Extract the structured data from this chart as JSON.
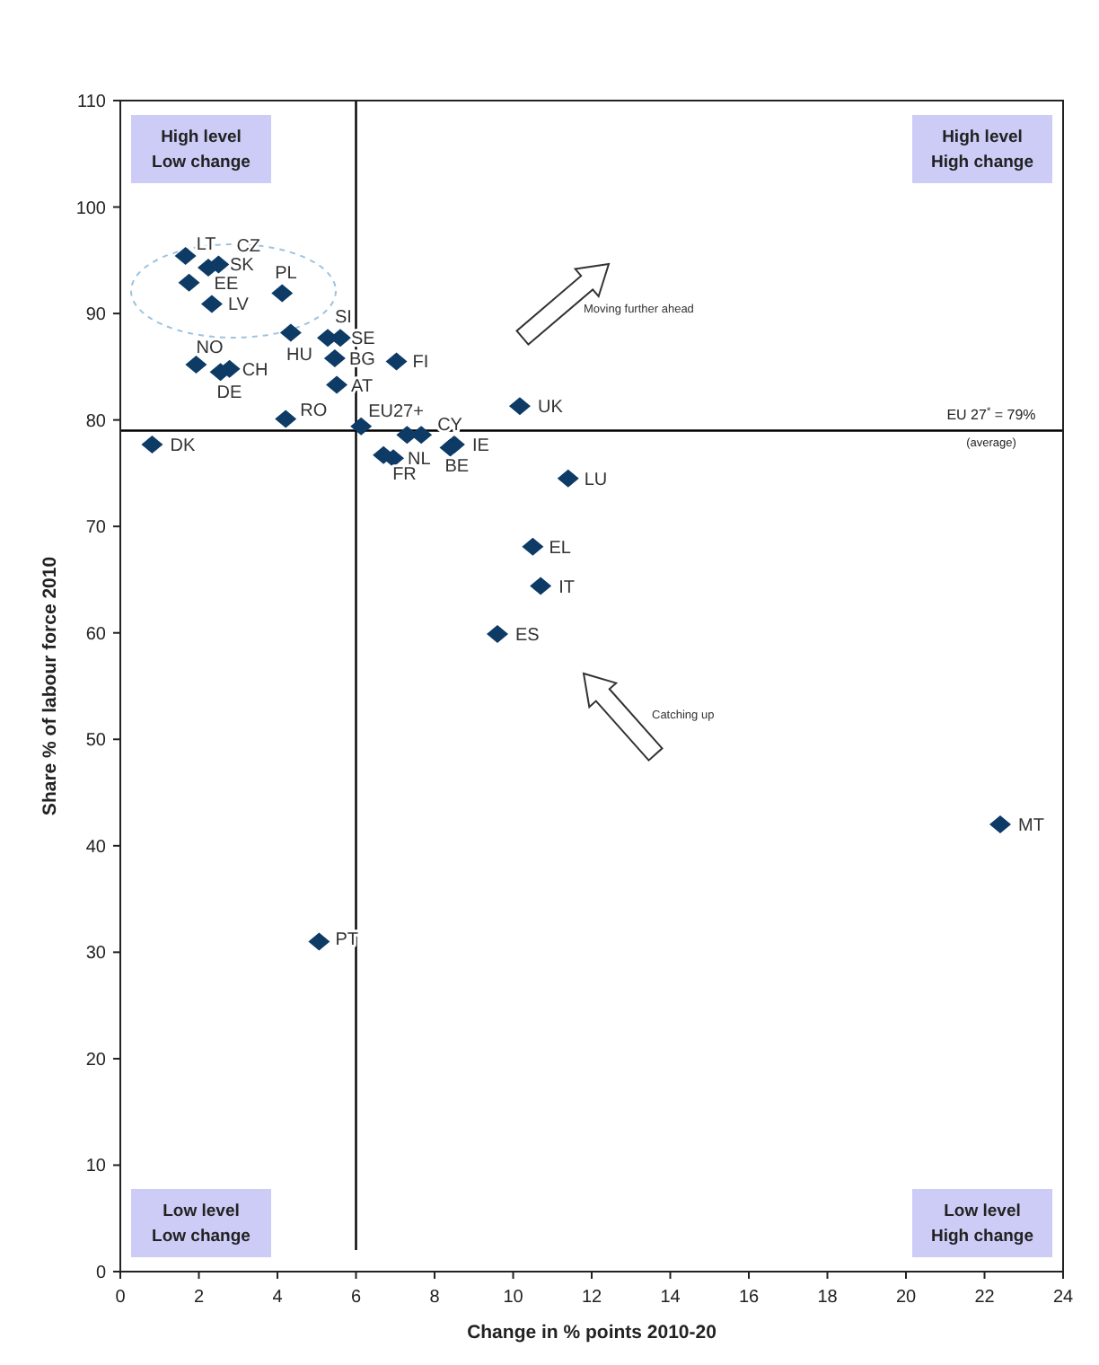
{
  "chart_data": {
    "type": "scatter",
    "xlabel": "Change in % points 2010-20",
    "ylabel": "Share % of labour force 2010",
    "xlim": [
      0,
      24
    ],
    "xticks": [
      0,
      2,
      4,
      6,
      8,
      10,
      12,
      14,
      16,
      18,
      20,
      22,
      24
    ],
    "ylim": [
      0,
      110
    ],
    "yticks": [
      0,
      10,
      20,
      30,
      40,
      50,
      60,
      70,
      80,
      90,
      100,
      110
    ],
    "grid": false,
    "marker": "diamond",
    "series": [
      {
        "color": "#0d3b66",
        "x": [
          1.66,
          2.5,
          2.24,
          1.75,
          2.33,
          4.12,
          4.34,
          5.28,
          5.6,
          5.46,
          7.03,
          1.93,
          2.78,
          2.55,
          5.51,
          4.21,
          6.13,
          10.17,
          0.81,
          7.66,
          7.3,
          8.5,
          8.4,
          6.95,
          6.7,
          11.4,
          10.5,
          10.7,
          9.6,
          22.4,
          5.06
        ],
        "values": [
          95.4,
          94.6,
          94.3,
          92.9,
          90.9,
          91.9,
          88.2,
          87.7,
          87.7,
          85.8,
          85.5,
          85.2,
          84.8,
          84.5,
          83.3,
          80.1,
          79.4,
          81.3,
          77.7,
          78.6,
          78.6,
          77.7,
          77.4,
          76.4,
          76.7,
          74.5,
          68.1,
          64.4,
          59.9,
          42,
          31
        ]
      }
    ],
    "ref_lines": [
      {
        "axis": "y",
        "value": 79,
        "label": "EU 27$^{*}$ = 79%\n(average)",
        "color": "#000000"
      },
      {
        "axis": "x",
        "value": 6,
        "color": "#000000"
      }
    ],
    "annotations": [
      "High level\nLow change",
      "High level\nHigh change",
      "Low level\nLow change",
      "Low level\nHigh change",
      "Moving further ahead",
      "Catching up",
      {
        "text": "LT",
        "x": 1.66,
        "y": 95.4
      },
      {
        "text": "CZ",
        "x": 2.5,
        "y": 94.6
      },
      {
        "text": "SK",
        "x": 2.24,
        "y": 94.3
      },
      {
        "text": "EE",
        "x": 1.75,
        "y": 92.9
      },
      {
        "text": "LV",
        "x": 2.33,
        "y": 90.9
      },
      {
        "text": "PL",
        "x": 4.12,
        "y": 91.9
      },
      {
        "text": "HU",
        "x": 4.34,
        "y": 88.2
      },
      {
        "text": "SI",
        "x": 5.28,
        "y": 87.7
      },
      {
        "text": "SE",
        "x": 5.6,
        "y": 87.7
      },
      {
        "text": "BG",
        "x": 5.46,
        "y": 85.8
      },
      {
        "text": "FI",
        "x": 7.03,
        "y": 85.5
      },
      {
        "text": "NO",
        "x": 1.93,
        "y": 85.2
      },
      {
        "text": "CH",
        "x": 2.78,
        "y": 84.8
      },
      {
        "text": "DE",
        "x": 2.55,
        "y": 84.5
      },
      {
        "text": "AT",
        "x": 5.51,
        "y": 83.3
      },
      {
        "text": "RO",
        "x": 4.21,
        "y": 80.1
      },
      {
        "text": "EU27+",
        "x": 6.13,
        "y": 79.4
      },
      {
        "text": "UK",
        "x": 10.17,
        "y": 81.3
      },
      {
        "text": "DK",
        "x": 0.81,
        "y": 77.7
      },
      {
        "text": "CY",
        "x": 7.66,
        "y": 78.6
      },
      {
        "text": "IE",
        "x": 8.5,
        "y": 77.7
      },
      {
        "text": "BE",
        "x": 8.4,
        "y": 77.4
      },
      {
        "text": "NL",
        "x": 6.95,
        "y": 76.4
      },
      {
        "text": "FR",
        "x": 6.7,
        "y": 76.7
      },
      {
        "text": "LU",
        "x": 11.4,
        "y": 74.5
      },
      {
        "text": "EL",
        "x": 10.5,
        "y": 68.1
      },
      {
        "text": "IT",
        "x": 10.7,
        "y": 64.4
      },
      {
        "text": "ES",
        "x": 9.6,
        "y": 59.9
      },
      {
        "text": "MT",
        "x": 22.4,
        "y": 42
      },
      {
        "text": "PT",
        "x": 5.06,
        "y": 31
      }
    ]
  }
}
